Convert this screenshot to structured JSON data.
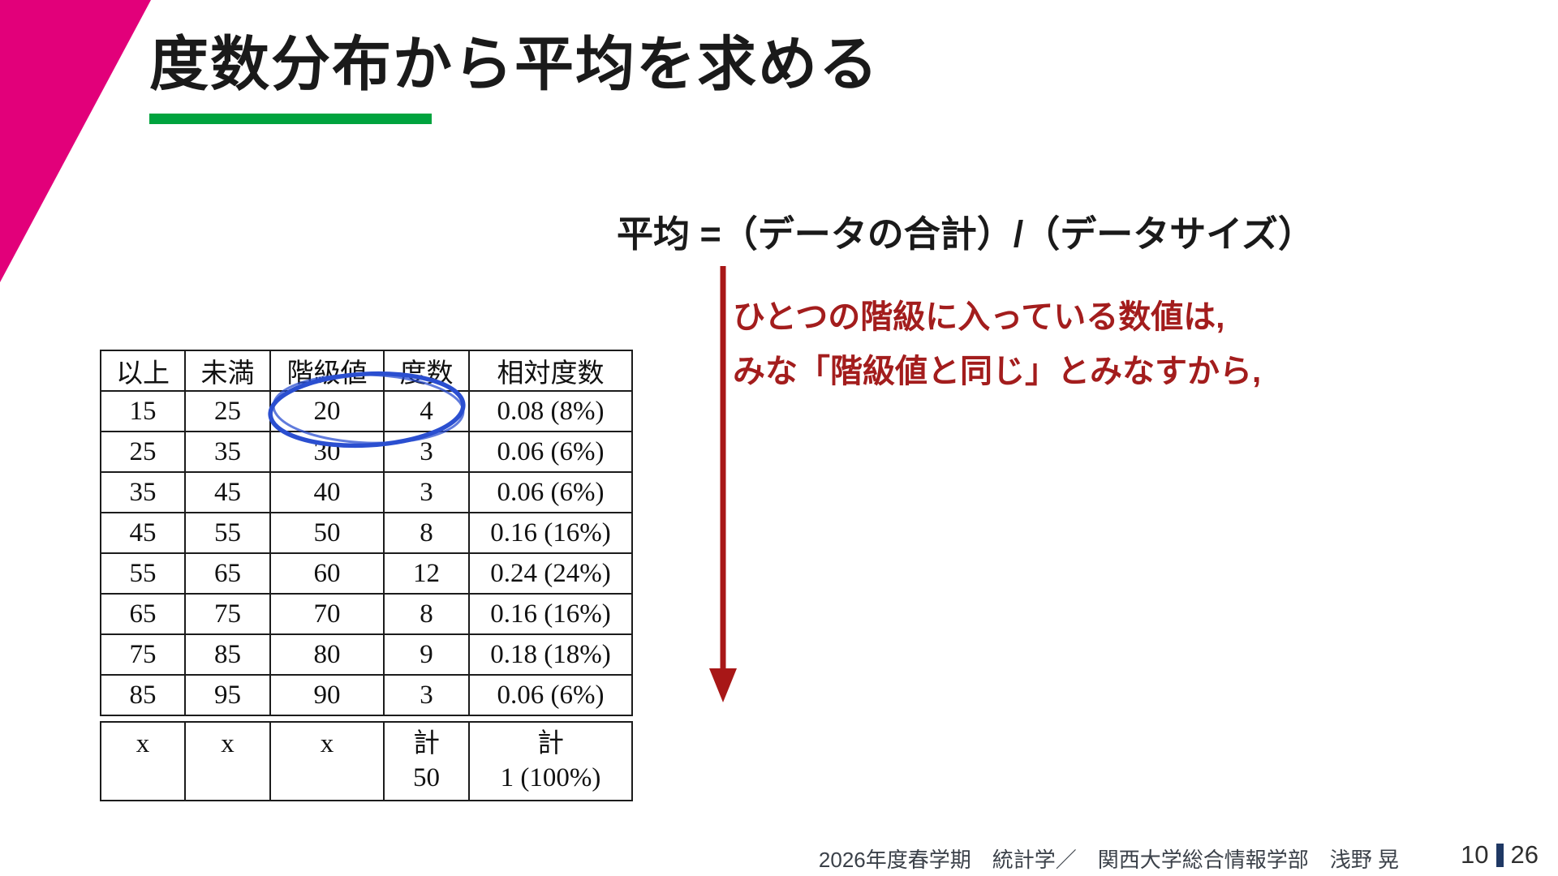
{
  "slide_title": "度数分布から平均を求める",
  "formula": "平均 =（データの合計）/（データサイズ）",
  "note": {
    "line1": "ひとつの階級に入っている数値は,",
    "line2": "みな「階級値と同じ」とみなすから,"
  },
  "table": {
    "headers": [
      "以上",
      "未満",
      "階級値",
      "度数",
      "相対度数"
    ],
    "rows": [
      [
        "15",
        "25",
        "20",
        "4",
        "0.08 (8%)"
      ],
      [
        "25",
        "35",
        "30",
        "3",
        "0.06 (6%)"
      ],
      [
        "35",
        "45",
        "40",
        "3",
        "0.06 (6%)"
      ],
      [
        "45",
        "55",
        "50",
        "8",
        "0.16 (16%)"
      ],
      [
        "55",
        "65",
        "60",
        "12",
        "0.24 (24%)"
      ],
      [
        "65",
        "75",
        "70",
        "8",
        "0.16 (16%)"
      ],
      [
        "75",
        "85",
        "80",
        "9",
        "0.18 (18%)"
      ],
      [
        "85",
        "95",
        "90",
        "3",
        "0.06 (6%)"
      ]
    ],
    "summary": {
      "line1": [
        "x",
        "x",
        "x",
        "計",
        "計"
      ],
      "line2": [
        "",
        "",
        "",
        "50",
        "1 (100%)"
      ]
    },
    "annotation": "blue hand-drawn ellipse circling class value 20 and frequency 4"
  },
  "footer": {
    "course": "2026年度春学期　統計学／　関西大学総合情報学部　浅野 晃",
    "page_current": "10",
    "page_total": "26"
  },
  "colors": {
    "accent_magenta": "#E2007A",
    "accent_green": "#00A33E",
    "note_red": "#A31D1D",
    "arrow_red": "#A81717",
    "ellipse_blue": "#2B4FD0",
    "page_bar_navy": "#1F3864",
    "text_black": "#1A1A1A",
    "footer_gray": "#3B4149"
  }
}
